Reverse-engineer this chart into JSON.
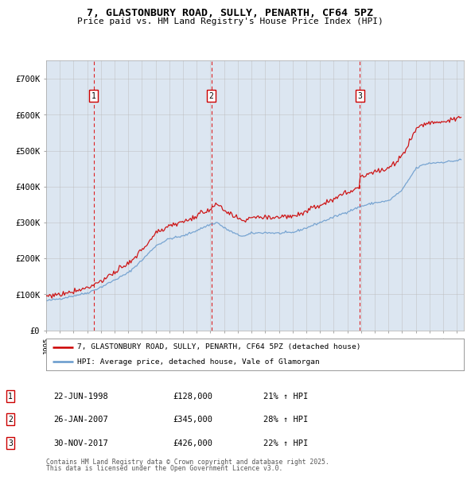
{
  "title_line1": "7, GLASTONBURY ROAD, SULLY, PENARTH, CF64 5PZ",
  "title_line2": "Price paid vs. HM Land Registry's House Price Index (HPI)",
  "background_color": "#dce6f1",
  "plot_bg_color": "#dce6f1",
  "ylim": [
    0,
    750000
  ],
  "xlim_start": 1995.0,
  "xlim_end": 2025.5,
  "yticks": [
    0,
    100000,
    200000,
    300000,
    400000,
    500000,
    600000,
    700000
  ],
  "ytick_labels": [
    "£0",
    "£100K",
    "£200K",
    "£300K",
    "£400K",
    "£500K",
    "£600K",
    "£700K"
  ],
  "sale1_date": 1998.47,
  "sale1_price": 128000,
  "sale1_label": "22-JUN-1998",
  "sale1_pct": "21%",
  "sale2_date": 2007.07,
  "sale2_price": 345000,
  "sale2_label": "26-JAN-2007",
  "sale2_pct": "28%",
  "sale3_date": 2017.92,
  "sale3_price": 426000,
  "sale3_label": "30-NOV-2017",
  "sale3_pct": "22%",
  "legend_label1": "7, GLASTONBURY ROAD, SULLY, PENARTH, CF64 5PZ (detached house)",
  "legend_label2": "HPI: Average price, detached house, Vale of Glamorgan",
  "footer1": "Contains HM Land Registry data © Crown copyright and database right 2025.",
  "footer2": "This data is licensed under the Open Government Licence v3.0.",
  "red_color": "#cc0000",
  "blue_color": "#6699cc",
  "grid_color": "#bbbbbb",
  "dashed_color": "#dd0000",
  "hpi_base": [
    [
      1995.0,
      82000
    ],
    [
      1996.0,
      88000
    ],
    [
      1997.0,
      96000
    ],
    [
      1998.0,
      104000
    ],
    [
      1999.0,
      120000
    ],
    [
      2000.0,
      140000
    ],
    [
      2001.0,
      160000
    ],
    [
      2002.0,
      195000
    ],
    [
      2003.0,
      235000
    ],
    [
      2004.0,
      255000
    ],
    [
      2005.0,
      262000
    ],
    [
      2006.0,
      278000
    ],
    [
      2007.0,
      295000
    ],
    [
      2007.5,
      300000
    ],
    [
      2008.0,
      285000
    ],
    [
      2009.0,
      265000
    ],
    [
      2009.5,
      262000
    ],
    [
      2010.0,
      270000
    ],
    [
      2011.0,
      272000
    ],
    [
      2012.0,
      270000
    ],
    [
      2013.0,
      272000
    ],
    [
      2014.0,
      285000
    ],
    [
      2015.0,
      300000
    ],
    [
      2016.0,
      315000
    ],
    [
      2017.0,
      330000
    ],
    [
      2018.0,
      345000
    ],
    [
      2019.0,
      355000
    ],
    [
      2020.0,
      360000
    ],
    [
      2021.0,
      390000
    ],
    [
      2021.5,
      420000
    ],
    [
      2022.0,
      450000
    ],
    [
      2022.5,
      460000
    ],
    [
      2023.0,
      465000
    ],
    [
      2024.0,
      468000
    ],
    [
      2025.0,
      472000
    ],
    [
      2025.3,
      475000
    ]
  ]
}
